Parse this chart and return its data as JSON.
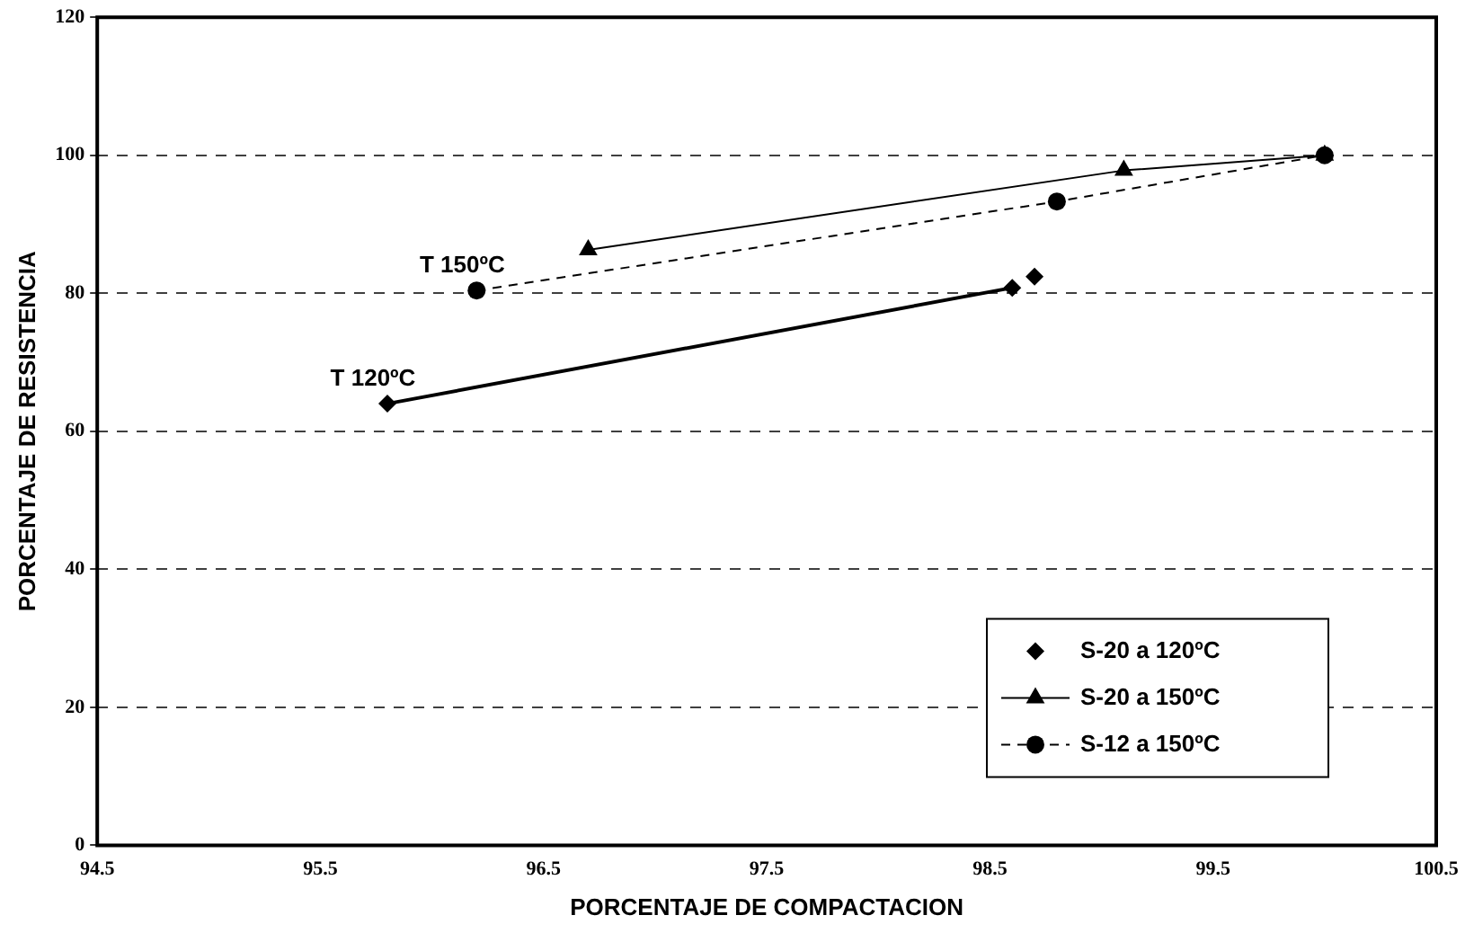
{
  "chart_data": {
    "type": "line",
    "xlabel": "PORCENTAJE DE COMPACTACION",
    "ylabel": "PORCENTAJE DE RESISTENCIA",
    "xlim": [
      94.5,
      100.5
    ],
    "xticks": [
      94.5,
      95.5,
      96.5,
      97.5,
      98.5,
      99.5,
      100.5
    ],
    "ylim": [
      0,
      120
    ],
    "yticks": [
      0,
      20,
      40,
      60,
      80,
      100,
      120
    ],
    "grid": "y",
    "legend": "bottom right",
    "series": [
      {
        "name": "S-20 a 120ºC",
        "type": "scatter",
        "marker": "diamond",
        "color": "#000000",
        "x": [
          95.8,
          98.6,
          98.7
        ],
        "values": [
          64,
          80.8,
          82.4
        ]
      },
      {
        "name": "S-20 a 150ºC",
        "type": "line",
        "marker": "triangle",
        "line_style": "solid",
        "color": "#000000",
        "x": [
          96.7,
          99.1,
          100
        ],
        "values": [
          86.3,
          97.8,
          100
        ]
      },
      {
        "name": "S-12 a 150ºC",
        "type": "line",
        "marker": "circle",
        "line_style": "dashed",
        "color": "#000000",
        "x": [
          96.2,
          98.8,
          100
        ],
        "values": [
          80.4,
          93.3,
          100
        ]
      },
      {
        "type": "line",
        "marker": "none",
        "line_style": "solid",
        "color": "#000000",
        "x": [
          95.8,
          98.6
        ],
        "values": [
          64,
          80.8
        ]
      }
    ],
    "annotations": [
      {
        "text": "T 150ºC",
        "x": 96.2,
        "y": 80.4
      },
      {
        "text": "T 120ºC",
        "x": 95.8,
        "y": 64
      }
    ]
  }
}
